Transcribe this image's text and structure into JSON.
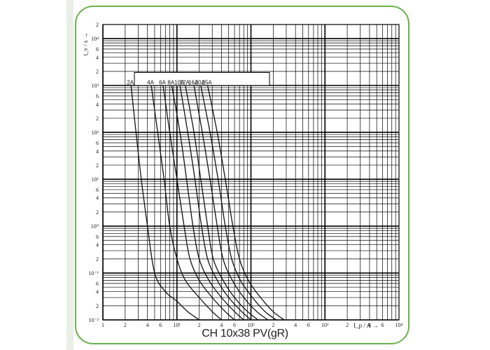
{
  "caption": "CH 10x38 PV(gR)",
  "chart_data": {
    "type": "line",
    "title": "CH 10x38 PV(gR)",
    "xlabel": "I_p / A →",
    "ylabel": "t_v / s →",
    "x_scale": "log",
    "y_scale": "log",
    "xlim": [
      1,
      10000
    ],
    "ylim": [
      0.01,
      20000
    ],
    "grid": true,
    "legend": "top",
    "x_tick_labels": [
      "1",
      "2",
      "4",
      "6",
      "10¹",
      "2",
      "4",
      "6",
      "10²",
      "2",
      "4",
      "6",
      "10³",
      "2",
      "4",
      "6",
      "10⁴"
    ],
    "y_tick_labels": [
      "10⁻²",
      "2",
      "4",
      "6",
      "10⁻¹",
      "2",
      "4",
      "6",
      "10⁰",
      "2",
      "4",
      "6",
      "10¹",
      "2",
      "4",
      "6",
      "10²",
      "2",
      "4",
      "6",
      "10³",
      "2",
      "4",
      "6",
      "10⁴",
      "2"
    ],
    "series": [
      {
        "name": "2A",
        "x": [
          2.4,
          2.8,
          3.3,
          4.0,
          5.0,
          7.0,
          10,
          14,
          20
        ],
        "y": [
          1000,
          100,
          10,
          1,
          0.1,
          0.04,
          0.025,
          0.015,
          0.01
        ]
      },
      {
        "name": "4A",
        "x": [
          4.5,
          5.5,
          6.7,
          8.0,
          10,
          13,
          20,
          30,
          40
        ],
        "y": [
          1000,
          100,
          10,
          1,
          0.2,
          0.07,
          0.03,
          0.015,
          0.01
        ]
      },
      {
        "name": "6A",
        "x": [
          6.5,
          8.0,
          10,
          12.5,
          15,
          20,
          30,
          45,
          60
        ],
        "y": [
          1000,
          100,
          10,
          1,
          0.2,
          0.07,
          0.03,
          0.015,
          0.01
        ]
      },
      {
        "name": "8A",
        "x": [
          8.5,
          11,
          13.5,
          16.5,
          20,
          27,
          40,
          60,
          80
        ],
        "y": [
          1000,
          100,
          10,
          1,
          0.2,
          0.07,
          0.03,
          0.015,
          0.01
        ]
      },
      {
        "name": "10A",
        "x": [
          11,
          14,
          17.5,
          21.5,
          26,
          35,
          50,
          75,
          100
        ],
        "y": [
          1000,
          100,
          10,
          1,
          0.2,
          0.07,
          0.03,
          0.015,
          0.01
        ]
      },
      {
        "name": "12A",
        "x": [
          13,
          17,
          21,
          26,
          31,
          42,
          60,
          90,
          125
        ],
        "y": [
          1000,
          100,
          10,
          1,
          0.2,
          0.07,
          0.03,
          0.015,
          0.01
        ]
      },
      {
        "name": "16A",
        "x": [
          17,
          22,
          28,
          35,
          42,
          56,
          80,
          120,
          170
        ],
        "y": [
          1000,
          100,
          10,
          1,
          0.2,
          0.07,
          0.03,
          0.015,
          0.01
        ]
      },
      {
        "name": "20A",
        "x": [
          21,
          28,
          36,
          45,
          55,
          72,
          105,
          155,
          220
        ],
        "y": [
          1000,
          100,
          10,
          1,
          0.2,
          0.07,
          0.03,
          0.015,
          0.01
        ]
      },
      {
        "name": "25A",
        "x": [
          26,
          35,
          45,
          57,
          70,
          92,
          135,
          200,
          280
        ],
        "y": [
          1000,
          100,
          10,
          1,
          0.2,
          0.07,
          0.03,
          0.015,
          0.01
        ]
      }
    ]
  }
}
